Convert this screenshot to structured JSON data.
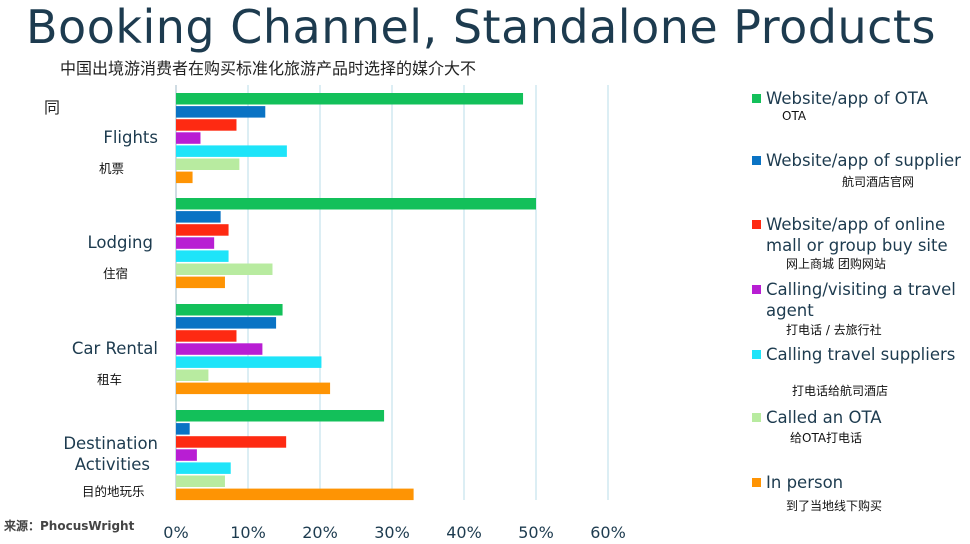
{
  "page": {
    "title": "Booking Channel, Standalone Products",
    "subtitle_line1": "中国出境游消费者在购买标准化旅游产品时选择的媒介大不",
    "subtitle_line2": "同",
    "source": "来源：PhocusWright"
  },
  "chart_data": {
    "type": "bar",
    "orientation": "horizontal",
    "xlim": [
      0,
      60
    ],
    "ticks": [
      "0%",
      "10%",
      "20%",
      "30%",
      "40%",
      "50%",
      "60%"
    ],
    "grid": true,
    "legend_position": "right",
    "categories": [
      {
        "label": "Flights",
        "label_zh": "机票"
      },
      {
        "label": "Lodging",
        "label_zh": "住宿"
      },
      {
        "label": "Car Rental",
        "label_zh": "租车"
      },
      {
        "label": "Destination Activities",
        "label_zh": "目的地玩乐"
      }
    ],
    "series": [
      {
        "name": "Website/app of OTA",
        "name_zh": "OTA",
        "color": "#13c05a",
        "values": [
          48.2,
          50.0,
          14.8,
          28.9
        ]
      },
      {
        "name": "Website/app of supplier",
        "name_zh": "航司酒店官网",
        "color": "#0a73c4",
        "values": [
          12.4,
          6.2,
          13.9,
          1.9
        ]
      },
      {
        "name": "Website/app of online mall or group buy site",
        "name_zh": "网上商城 团购网站",
        "color": "#fe2a12",
        "values": [
          8.4,
          7.3,
          8.4,
          15.3
        ]
      },
      {
        "name": "Calling/visiting a travel agent",
        "name_zh": "打电话 / 去旅行社",
        "color": "#b81ed3",
        "values": [
          3.4,
          5.3,
          12.0,
          2.9
        ]
      },
      {
        "name": "Calling travel suppliers",
        "name_zh": "打电话给航司酒店",
        "color": "#1ee4f9",
        "values": [
          15.4,
          7.3,
          20.2,
          7.6
        ]
      },
      {
        "name": "Called an OTA",
        "name_zh": "给OTA打电话",
        "color": "#b8eba0",
        "values": [
          8.8,
          13.4,
          4.5,
          6.8
        ]
      },
      {
        "name": "In person",
        "name_zh": "到了当地线下购买",
        "color": "#fe9404",
        "values": [
          2.3,
          6.8,
          21.4,
          33.0
        ]
      }
    ]
  }
}
